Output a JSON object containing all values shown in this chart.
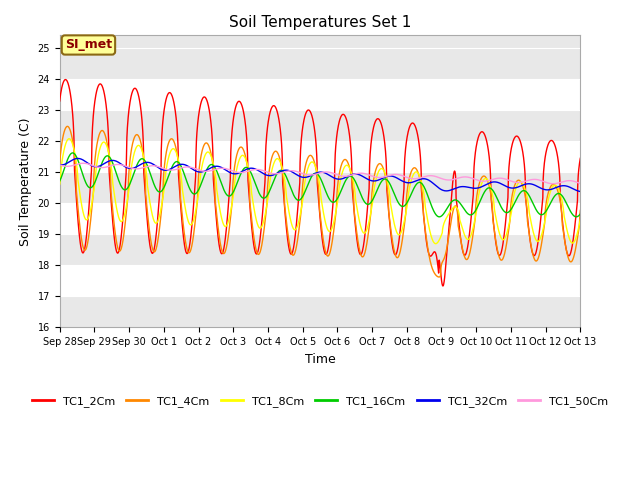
{
  "title": "Soil Temperatures Set 1",
  "xlabel": "Time",
  "ylabel": "Soil Temperature (C)",
  "ylim": [
    16.0,
    25.4
  ],
  "yticks": [
    16.0,
    17.0,
    18.0,
    19.0,
    20.0,
    21.0,
    22.0,
    23.0,
    24.0,
    25.0
  ],
  "annotation_text": "SI_met",
  "annotation_bg": "#ffff99",
  "annotation_border": "#8b6914",
  "legend_labels": [
    "TC1_2Cm",
    "TC1_4Cm",
    "TC1_8Cm",
    "TC1_16Cm",
    "TC1_32Cm",
    "TC1_50Cm"
  ],
  "line_colors": [
    "#ff0000",
    "#ff8800",
    "#ffff00",
    "#00cc00",
    "#0000ee",
    "#ff99dd"
  ],
  "x_tick_labels": [
    "Sep 28",
    "Sep 29",
    "Sep 30",
    "Oct 1",
    "Oct 2",
    "Oct 3",
    "Oct 4",
    "Oct 5",
    "Oct 6",
    "Oct 7",
    "Oct 8",
    "Oct 9",
    "Oct 10",
    "Oct 11",
    "Oct 12",
    "Oct 13"
  ],
  "n_points": 2000,
  "duration_days": 15
}
